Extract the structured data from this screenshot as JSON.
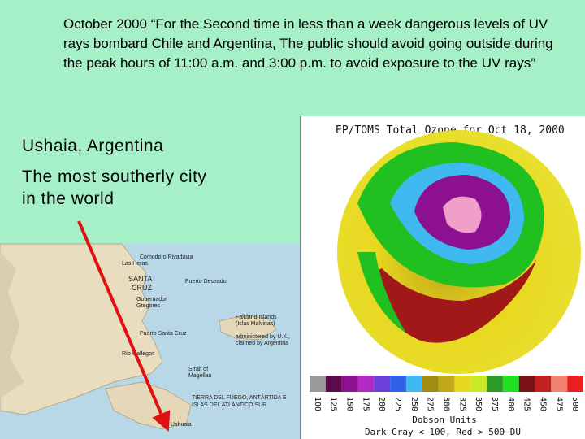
{
  "quote": "October 2000  “For the Second time in less than a week dangerous levels of  UV rays bombard Chile and Argentina, The public should avoid going outside during the peak hours of 11:00 a.m. and 3:00 p.m. to avoid exposure to the UV rays”",
  "location": {
    "title": "Ushaia, Argentina",
    "caption_lines": [
      "The most southerly city",
      "in the world"
    ]
  },
  "map": {
    "labels": [
      "Comodoro Rivadavia",
      "Las Heras",
      "SANTA",
      "CRUZ",
      "Puerto Deseado",
      "Gobernador",
      "Gregores",
      "Falkland Islands",
      "(Islas Malvinas)",
      "administered by U.K.,",
      "claimed by Argentina",
      "Puerto Santa Cruz",
      "Río Gallegos",
      "Strait of",
      "Magellan",
      "TIERRA DEL FUEGO, ANTÁRTIDA E",
      "ISLAS DEL ATLÁNTICO SUR",
      "Ushuaia"
    ]
  },
  "ozone": {
    "title": "EP/TOMS Total Ozone for Oct 18, 2000",
    "scale": [
      {
        "label": 100,
        "color": "#999999"
      },
      {
        "label": 125,
        "color": "#5c0a4c"
      },
      {
        "label": 150,
        "color": "#8c1090"
      },
      {
        "label": 175,
        "color": "#b428c8"
      },
      {
        "label": 200,
        "color": "#6a40d8"
      },
      {
        "label": 225,
        "color": "#3060e8"
      },
      {
        "label": 250,
        "color": "#40b8f0"
      },
      {
        "label": 275,
        "color": "#a08c10"
      },
      {
        "label": 300,
        "color": "#c0a818"
      },
      {
        "label": 325,
        "color": "#e8d820"
      },
      {
        "label": 350,
        "color": "#c8e828"
      },
      {
        "label": 375,
        "color": "#2a9a2a"
      },
      {
        "label": 400,
        "color": "#20e020"
      },
      {
        "label": 425,
        "color": "#7a1018"
      },
      {
        "label": 450,
        "color": "#c02020"
      },
      {
        "label": 475,
        "color": "#f08070"
      },
      {
        "label": 500,
        "color": "#e82020"
      }
    ],
    "units": "Dobson Units",
    "note": "Dark Gray < 100, Red > 500 DU"
  }
}
